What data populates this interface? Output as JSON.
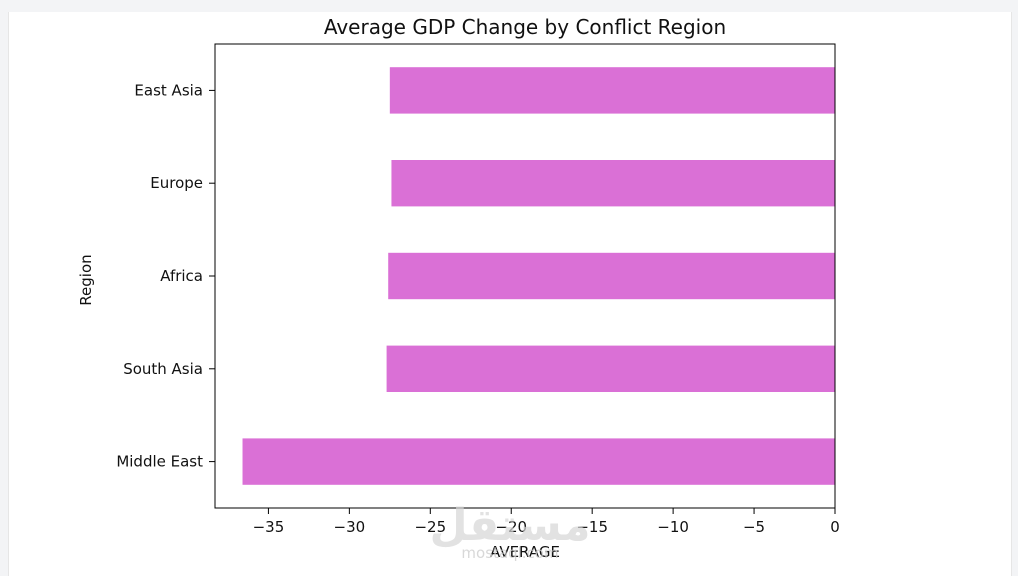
{
  "chart_data": {
    "type": "bar",
    "orientation": "horizontal",
    "title": "Average GDP Change by Conflict Region",
    "xlabel": "AVERAGE",
    "ylabel": "Region",
    "categories": [
      "East Asia",
      "Europe",
      "Africa",
      "South Asia",
      "Middle East"
    ],
    "values": [
      -27.5,
      -27.4,
      -27.6,
      -27.7,
      -36.6
    ],
    "xlim": [
      -38.3,
      0
    ],
    "xticks": [
      -35,
      -30,
      -25,
      -20,
      -15,
      -10,
      -5,
      0
    ],
    "xtick_labels": [
      "−35",
      "−30",
      "−25",
      "−20",
      "−15",
      "−10",
      "−5",
      "0"
    ],
    "bar_color": "#da70d6",
    "grid": false,
    "legend": "none"
  },
  "watermark": {
    "text_ar": "مستقل",
    "text_en": "mostaql.com"
  }
}
